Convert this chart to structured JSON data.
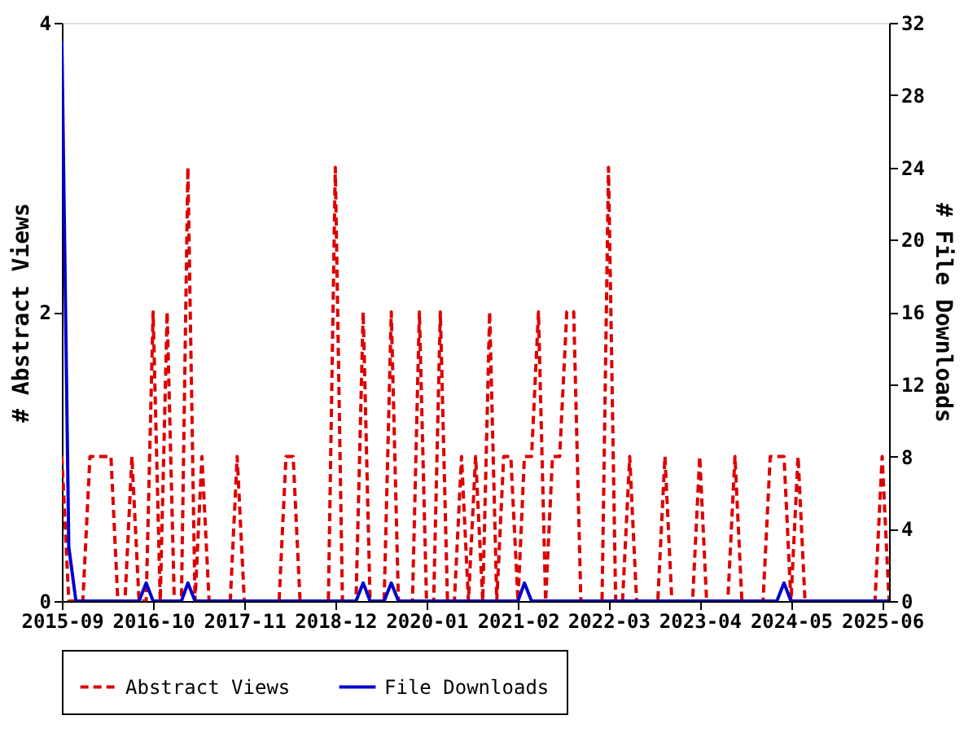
{
  "chart_data": {
    "type": "line",
    "x": [
      "2015-09",
      "2015-10",
      "2015-11",
      "2015-12",
      "2016-01",
      "2016-02",
      "2016-03",
      "2016-04",
      "2016-05",
      "2016-06",
      "2016-07",
      "2016-08",
      "2016-09",
      "2016-10",
      "2016-11",
      "2016-12",
      "2017-01",
      "2017-02",
      "2017-03",
      "2017-04",
      "2017-05",
      "2017-06",
      "2017-07",
      "2017-08",
      "2017-09",
      "2017-10",
      "2017-11",
      "2017-12",
      "2018-01",
      "2018-02",
      "2018-03",
      "2018-04",
      "2018-05",
      "2018-06",
      "2018-07",
      "2018-08",
      "2018-09",
      "2018-10",
      "2018-11",
      "2018-12",
      "2019-01",
      "2019-02",
      "2019-03",
      "2019-04",
      "2019-05",
      "2019-06",
      "2019-07",
      "2019-08",
      "2019-09",
      "2019-10",
      "2019-11",
      "2019-12",
      "2020-01",
      "2020-02",
      "2020-03",
      "2020-04",
      "2020-05",
      "2020-06",
      "2020-07",
      "2020-08",
      "2020-09",
      "2020-10",
      "2020-11",
      "2020-12",
      "2021-01",
      "2021-02",
      "2021-03",
      "2021-04",
      "2021-05",
      "2021-06",
      "2021-07",
      "2021-08",
      "2021-09",
      "2021-10",
      "2021-11",
      "2021-12",
      "2022-01",
      "2022-02",
      "2022-03",
      "2022-04",
      "2022-05",
      "2022-06",
      "2022-07",
      "2022-08",
      "2022-09",
      "2022-10",
      "2022-11",
      "2022-12",
      "2023-01",
      "2023-02",
      "2023-03",
      "2023-04",
      "2023-05",
      "2023-06",
      "2023-07",
      "2023-08",
      "2023-09",
      "2023-10",
      "2023-11",
      "2023-12",
      "2024-01",
      "2024-02",
      "2024-03",
      "2024-04",
      "2024-05",
      "2024-06",
      "2024-07",
      "2024-08",
      "2024-09",
      "2024-10",
      "2024-11",
      "2024-12",
      "2025-01",
      "2025-02",
      "2025-03",
      "2025-04",
      "2025-05",
      "2025-06",
      "2025-07"
    ],
    "series": [
      {
        "name": "Abstract Views",
        "color": "#dd0000",
        "line_style": "dashed",
        "values": [
          1,
          0,
          0,
          0,
          1,
          1,
          1,
          1,
          0,
          0,
          1,
          0,
          0,
          2,
          0,
          2,
          0,
          0,
          3,
          0,
          1,
          0,
          0,
          0,
          0,
          1,
          0,
          0,
          0,
          0,
          0,
          0,
          1,
          1,
          0,
          0,
          0,
          0,
          0,
          3,
          0,
          0,
          0,
          2,
          0,
          0,
          0,
          2,
          0,
          0,
          0,
          2,
          0,
          0,
          2,
          0,
          0,
          1,
          0,
          1,
          0,
          2,
          0,
          1,
          1,
          0,
          1,
          1,
          2,
          0,
          1,
          1,
          2,
          2,
          0,
          0,
          0,
          0,
          3,
          0,
          0,
          1,
          0,
          0,
          0,
          0,
          1,
          0,
          0,
          0,
          0,
          1,
          0,
          0,
          0,
          0,
          1,
          0,
          0,
          0,
          0,
          1,
          1,
          1,
          0,
          1,
          0,
          0,
          0,
          0,
          0,
          0,
          0,
          0,
          0,
          0,
          0,
          1,
          0
        ]
      },
      {
        "name": "File Downloads",
        "color": "#0000cc",
        "line_style": "solid",
        "axis": "y2",
        "values": [
          31,
          3,
          0,
          0,
          0,
          0,
          0,
          0,
          0,
          0,
          0,
          0,
          1,
          0,
          0,
          0,
          0,
          0,
          1,
          0,
          0,
          0,
          0,
          0,
          0,
          0,
          0,
          0,
          0,
          0,
          0,
          0,
          0,
          0,
          0,
          0,
          0,
          0,
          0,
          0,
          0,
          0,
          0,
          1,
          0,
          0,
          0,
          1,
          0,
          0,
          0,
          0,
          0,
          0,
          0,
          0,
          0,
          0,
          0,
          0,
          0,
          0,
          0,
          0,
          0,
          0,
          1,
          0,
          0,
          0,
          0,
          0,
          0,
          0,
          0,
          0,
          0,
          0,
          0,
          0,
          0,
          0,
          0,
          0,
          0,
          0,
          0,
          0,
          0,
          0,
          0,
          0,
          0,
          0,
          0,
          0,
          0,
          0,
          0,
          0,
          0,
          0,
          0,
          1,
          0,
          0,
          0,
          0,
          0,
          0,
          0,
          0,
          0,
          0,
          0,
          0,
          0,
          0,
          0
        ]
      }
    ],
    "xlim": [
      "2015-09",
      "2025-07"
    ],
    "xticks": [
      "2015-09",
      "2016-10",
      "2017-11",
      "2018-12",
      "2020-01",
      "2021-02",
      "2022-03",
      "2023-04",
      "2024-05",
      "2025-06"
    ],
    "ylabel": "# Abstract Views",
    "ylim": [
      0,
      4
    ],
    "yticks": [
      0,
      2,
      4
    ],
    "y2label": "# File Downloads",
    "y2lim": [
      0,
      32
    ],
    "y2ticks": [
      0,
      4,
      8,
      12,
      16,
      20,
      24,
      28,
      32
    ],
    "grid": false,
    "legend": "bottom",
    "marker": "none"
  }
}
